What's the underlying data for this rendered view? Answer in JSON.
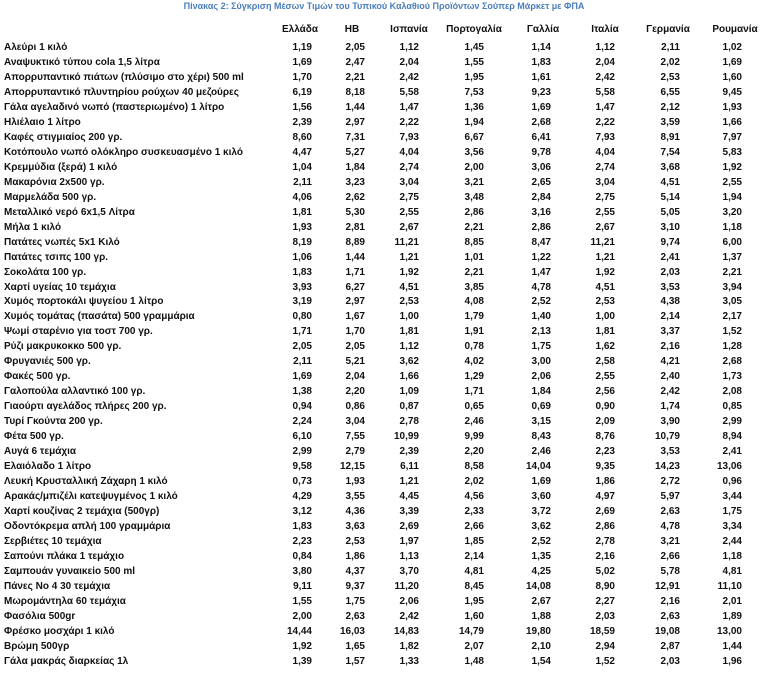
{
  "title": "Πίνακας 2: Σύγκριση Μέσων Τιμών του Τυπικού Καλαθιού Προϊόντων Σούπερ Μάρκετ με ΦΠΑ",
  "table": {
    "columns": [
      "Ελλάδα",
      "ΗΒ",
      "Ισπανία",
      "Πορτογαλία",
      "Γαλλία",
      "Ιταλία",
      "Γερμανία",
      "Ρουμανία"
    ],
    "rows": [
      [
        "Αλεύρι 1 κιλό",
        "1,19",
        "2,05",
        "1,12",
        "1,45",
        "1,14",
        "1,12",
        "2,11",
        "1,02"
      ],
      [
        "Αναψυκτικό τύπου cola 1,5 λίτρα",
        "1,69",
        "2,47",
        "2,04",
        "1,55",
        "1,83",
        "2,04",
        "2,02",
        "1,69"
      ],
      [
        "Απορρυπαντικό πιάτων (πλύσιμο στο χέρι) 500 ml",
        "1,70",
        "2,21",
        "2,42",
        "1,95",
        "1,61",
        "2,42",
        "2,53",
        "1,60"
      ],
      [
        "Απορρυπαντικό πλυντηρίου ρούχων 40 μεζούρες",
        "6,19",
        "8,18",
        "5,58",
        "7,53",
        "9,23",
        "5,58",
        "6,55",
        "9,45"
      ],
      [
        "Γάλα αγελαδινό νωπό (παστεριωμένο) 1 λίτρο",
        "1,56",
        "1,44",
        "1,47",
        "1,36",
        "1,69",
        "1,47",
        "2,12",
        "1,93"
      ],
      [
        "Ηλιέλαιο 1 λίτρο",
        "2,39",
        "2,97",
        "2,22",
        "1,94",
        "2,68",
        "2,22",
        "3,59",
        "1,66"
      ],
      [
        "Καφές στιγμιαίος 200 γρ.",
        "8,60",
        "7,31",
        "7,93",
        "6,67",
        "6,41",
        "7,93",
        "8,91",
        "7,97"
      ],
      [
        "Κοτόπουλο νωπό ολόκληρο συσκευασμένο 1 κιλό",
        "4,47",
        "5,27",
        "4,04",
        "3,56",
        "9,78",
        "4,04",
        "7,54",
        "5,83"
      ],
      [
        "Κρεμμύδια (ξερά) 1 κιλό",
        "1,04",
        "1,84",
        "2,74",
        "2,00",
        "3,06",
        "2,74",
        "3,68",
        "1,92"
      ],
      [
        "Μακαρόνια 2x500 γρ.",
        "2,11",
        "3,23",
        "3,04",
        "3,21",
        "2,65",
        "3,04",
        "4,51",
        "2,55"
      ],
      [
        "Μαρμελάδα 500 γρ.",
        "4,06",
        "2,62",
        "2,75",
        "3,48",
        "2,84",
        "2,75",
        "5,14",
        "1,94"
      ],
      [
        "Μεταλλικό νερό 6x1,5 Λίτρα",
        "1,81",
        "5,30",
        "2,55",
        "2,86",
        "3,16",
        "2,55",
        "5,05",
        "3,20"
      ],
      [
        "Μήλα 1 κιλό",
        "1,93",
        "2,81",
        "2,67",
        "2,21",
        "2,86",
        "2,67",
        "3,10",
        "1,18"
      ],
      [
        "Πατάτες νωπές 5x1 Κιλό",
        "8,19",
        "8,89",
        "11,21",
        "8,85",
        "8,47",
        "11,21",
        "9,74",
        "6,00"
      ],
      [
        "Πατάτες τσιπς 100 γρ.",
        "1,06",
        "1,44",
        "1,21",
        "1,01",
        "1,22",
        "1,21",
        "2,41",
        "1,37"
      ],
      [
        "Σοκολάτα 100 γρ.",
        "1,83",
        "1,71",
        "1,92",
        "2,21",
        "1,47",
        "1,92",
        "2,03",
        "2,21"
      ],
      [
        "Χαρτί υγείας 10 τεμάχια",
        "3,93",
        "6,27",
        "4,51",
        "3,85",
        "4,78",
        "4,51",
        "3,53",
        "3,94"
      ],
      [
        "Χυμός πορτοκάλι ψυγείου 1 λίτρο",
        "3,19",
        "2,97",
        "2,53",
        "4,08",
        "2,52",
        "2,53",
        "4,38",
        "3,05"
      ],
      [
        "Χυμός τομάτας (πασάτα) 500 γραμμάρια",
        "0,80",
        "1,67",
        "1,00",
        "1,79",
        "1,40",
        "1,00",
        "2,14",
        "2,17"
      ],
      [
        "Ψωμί σταρένιο για τοστ 700 γρ.",
        "1,71",
        "1,70",
        "1,81",
        "1,91",
        "2,13",
        "1,81",
        "3,37",
        "1,52"
      ],
      [
        "Ρύζι μακρυκοκκο 500 γρ.",
        "2,05",
        "2,05",
        "1,12",
        "0,78",
        "1,75",
        "1,62",
        "2,16",
        "1,28"
      ],
      [
        "Φρυγανιές 500 γρ.",
        "2,11",
        "5,21",
        "3,62",
        "4,02",
        "3,00",
        "2,58",
        "4,21",
        "2,68"
      ],
      [
        "Φακές 500 γρ.",
        "1,69",
        "2,04",
        "1,66",
        "1,29",
        "2,06",
        "2,55",
        "2,40",
        "1,73"
      ],
      [
        "Γαλοπούλα αλλαντικό 100 γρ.",
        "1,38",
        "2,20",
        "1,09",
        "1,71",
        "1,84",
        "2,56",
        "2,42",
        "2,08"
      ],
      [
        "Γιαούρτι αγελάδος πλήρες 200 γρ.",
        "0,94",
        "0,86",
        "0,87",
        "0,65",
        "0,69",
        "0,90",
        "1,74",
        "0,85"
      ],
      [
        "Τυρί Γκούντα 200 γρ.",
        "2,24",
        "3,04",
        "2,78",
        "2,46",
        "3,15",
        "2,09",
        "3,90",
        "2,99"
      ],
      [
        "Φέτα 500 γρ.",
        "6,10",
        "7,55",
        "10,99",
        "9,99",
        "8,43",
        "8,76",
        "10,79",
        "8,94"
      ],
      [
        "Αυγά 6 τεμάχια",
        "2,99",
        "2,79",
        "2,39",
        "2,20",
        "2,46",
        "2,23",
        "3,53",
        "2,41"
      ],
      [
        "Ελαιόλαδο 1 λίτρο",
        "9,58",
        "12,15",
        "6,11",
        "8,58",
        "14,04",
        "9,35",
        "14,23",
        "13,06"
      ],
      [
        "Λευκή Κρυσταλλική Ζάχαρη 1 κιλό",
        "0,73",
        "1,93",
        "1,21",
        "2,02",
        "1,69",
        "1,86",
        "2,72",
        "0,96"
      ],
      [
        "Αρακάς/μπιζέλι κατεψυγμένος 1 κιλό",
        "4,29",
        "3,55",
        "4,45",
        "4,56",
        "3,60",
        "4,97",
        "5,97",
        "3,44"
      ],
      [
        "Χαρτί κουζίνας 2 τεμάχια (500γρ)",
        "3,12",
        "4,36",
        "3,39",
        "2,33",
        "3,72",
        "2,69",
        "2,63",
        "1,75"
      ],
      [
        "Οδοντόκρεμα απλή 100 γραμμάρια",
        "1,83",
        "3,63",
        "2,69",
        "2,66",
        "3,62",
        "2,86",
        "4,78",
        "3,34"
      ],
      [
        "Σερβιέτες 10 τεμάχια",
        "2,23",
        "2,53",
        "1,97",
        "1,85",
        "2,52",
        "2,78",
        "3,21",
        "2,44"
      ],
      [
        "Σαπούνι πλάκα 1 τεμάχιο",
        "0,84",
        "1,86",
        "1,13",
        "2,14",
        "1,35",
        "2,16",
        "2,66",
        "1,18"
      ],
      [
        "Σαμπουάν γυναικείο 500 ml",
        "3,80",
        "4,37",
        "3,70",
        "4,81",
        "4,25",
        "5,02",
        "5,78",
        "4,81"
      ],
      [
        "Πάνες Νο 4 30 τεμάχια",
        "9,11",
        "9,37",
        "11,20",
        "8,45",
        "14,08",
        "8,90",
        "12,91",
        "11,10"
      ],
      [
        "Μωρομάντηλα 60 τεμάχια",
        "1,55",
        "1,75",
        "2,06",
        "1,95",
        "2,67",
        "2,27",
        "2,16",
        "2,01"
      ],
      [
        "Φασόλια 500gr",
        "2,00",
        "2,63",
        "2,42",
        "1,60",
        "1,88",
        "2,03",
        "2,63",
        "1,89"
      ],
      [
        "Φρέσκο μοσχάρι 1 κιλό",
        "14,44",
        "16,03",
        "14,83",
        "14,79",
        "19,80",
        "18,59",
        "19,08",
        "13,00"
      ],
      [
        "Βρώμη 500γρ",
        "1,92",
        "1,65",
        "1,82",
        "2,07",
        "2,10",
        "2,94",
        "2,87",
        "1,44"
      ],
      [
        "Γάλα μακράς διαρκείας 1λ",
        "1,39",
        "1,57",
        "1,33",
        "1,48",
        "1,54",
        "1,52",
        "2,03",
        "1,96"
      ]
    ]
  }
}
